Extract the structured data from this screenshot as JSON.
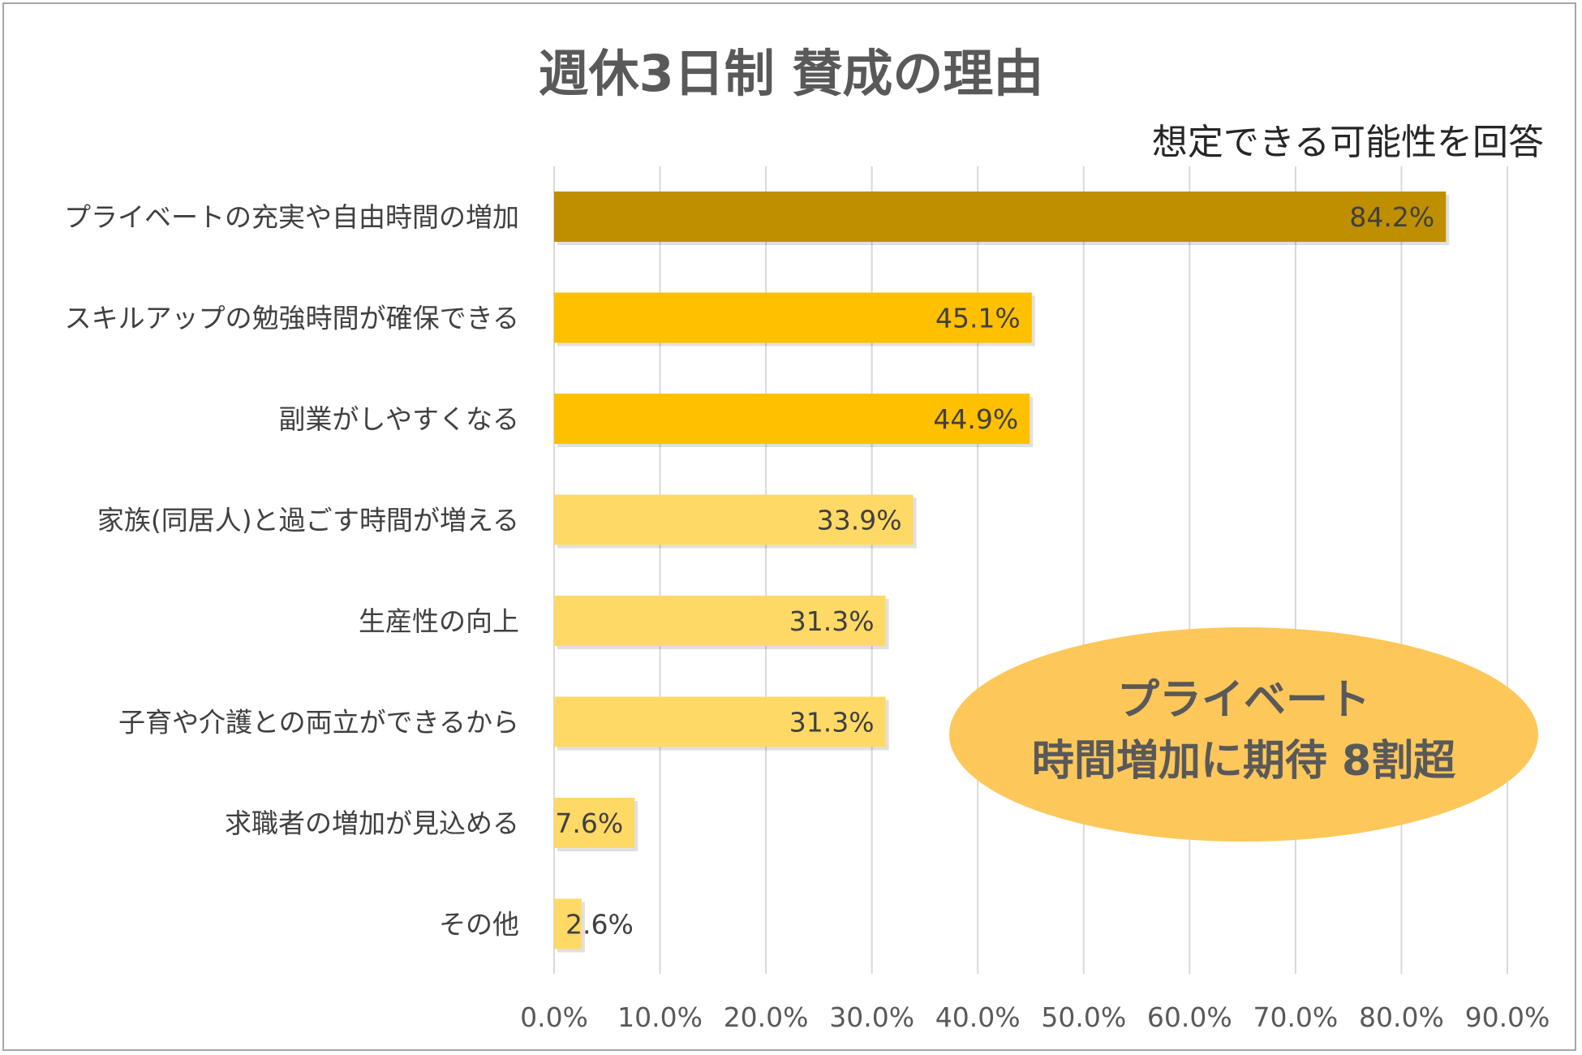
{
  "chart_data": {
    "type": "bar",
    "orientation": "horizontal",
    "title": "週休3日制 賛成の理由",
    "subtitle": "想定できる可能性を回答",
    "categories": [
      "プライベートの充実や自由時間の増加",
      "スキルアップの勉強時間が確保できる",
      "副業がしやすくなる",
      "家族(同居人)と過ごす時間が増える",
      "生産性の向上",
      "子育や介護との両立ができるから",
      "求職者の増加が見込める",
      "その他"
    ],
    "values": [
      84.2,
      45.1,
      44.9,
      33.9,
      31.3,
      31.3,
      7.6,
      2.6
    ],
    "value_labels": [
      "84.2%",
      "45.1%",
      "44.9%",
      "33.9%",
      "31.3%",
      "31.3%",
      "7.6%",
      "2.6%"
    ],
    "bar_colors": [
      "#bf8f00",
      "#ffc000",
      "#ffc000",
      "#ffd966",
      "#ffd966",
      "#ffd966",
      "#ffd966",
      "#ffd966"
    ],
    "xlim": [
      0,
      90
    ],
    "x_ticks": [
      "0.0%",
      "10.0%",
      "20.0%",
      "30.0%",
      "40.0%",
      "50.0%",
      "60.0%",
      "70.0%",
      "80.0%",
      "90.0%"
    ],
    "grid": true,
    "xlabel": "",
    "ylabel": ""
  },
  "callout": {
    "lines": [
      "プライベート",
      "時間増加に期待 8割超"
    ],
    "color": "#fdc75a"
  }
}
